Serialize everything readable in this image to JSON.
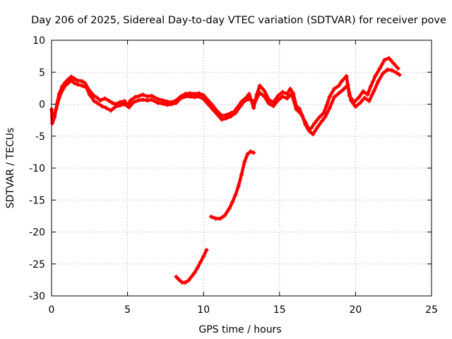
{
  "chart_data": {
    "type": "scatter",
    "title": "Day 206 of 2025, Sidereal Day-to-day VTEC variation (SDTVAR) for receiver pove",
    "xlabel": "GPS time / hours",
    "ylabel": "SDTVAR / TECUs",
    "xlim": [
      0,
      25
    ],
    "ylim": [
      -30,
      10
    ],
    "xticks": [
      0,
      5,
      10,
      15,
      20,
      25
    ],
    "yticks": [
      10,
      5,
      0,
      -5,
      -10,
      -15,
      -20,
      -25,
      -30
    ],
    "xtick_labels": [
      "0",
      "5",
      "10",
      "15",
      "20",
      "25"
    ],
    "ytick_labels": [
      "10",
      "5",
      "0",
      "-5",
      "-10",
      "-15",
      "-20",
      "-25",
      "-30"
    ],
    "grid": true,
    "series_color": "#ff0000",
    "series": [
      {
        "name": "main-trace-a",
        "points": [
          [
            0.0,
            -0.8
          ],
          [
            0.05,
            -3.0
          ],
          [
            0.2,
            -2.0
          ],
          [
            0.35,
            0.0
          ],
          [
            0.5,
            1.6
          ],
          [
            0.7,
            2.8
          ],
          [
            0.9,
            3.4
          ],
          [
            1.1,
            3.9
          ],
          [
            1.3,
            4.3
          ],
          [
            1.5,
            4.0
          ],
          [
            1.7,
            3.7
          ],
          [
            2.0,
            3.6
          ],
          [
            2.2,
            3.3
          ],
          [
            2.5,
            2.1
          ],
          [
            2.8,
            1.3
          ],
          [
            3.0,
            1.0
          ],
          [
            3.2,
            0.6
          ],
          [
            3.5,
            0.9
          ],
          [
            3.8,
            0.5
          ],
          [
            4.0,
            0.2
          ],
          [
            4.2,
            0.0
          ],
          [
            4.5,
            0.3
          ],
          [
            4.8,
            0.5
          ],
          [
            5.0,
            -0.2
          ],
          [
            5.2,
            0.6
          ],
          [
            5.5,
            1.1
          ],
          [
            5.8,
            1.3
          ],
          [
            6.0,
            1.5
          ],
          [
            6.3,
            1.2
          ],
          [
            6.6,
            1.3
          ],
          [
            7.0,
            0.8
          ],
          [
            7.3,
            0.6
          ],
          [
            7.6,
            0.4
          ],
          [
            7.9,
            0.3
          ],
          [
            8.2,
            0.6
          ],
          [
            8.5,
            1.2
          ],
          [
            8.8,
            1.6
          ],
          [
            9.1,
            1.7
          ],
          [
            9.4,
            1.6
          ],
          [
            9.7,
            1.7
          ],
          [
            10.0,
            1.4
          ],
          [
            10.3,
            0.6
          ],
          [
            10.6,
            -0.2
          ],
          [
            10.9,
            -1.1
          ],
          [
            11.2,
            -1.8
          ],
          [
            11.5,
            -1.7
          ],
          [
            11.8,
            -1.4
          ],
          [
            12.0,
            -1.2
          ],
          [
            12.2,
            -0.6
          ],
          [
            12.5,
            0.4
          ],
          [
            12.8,
            1.0
          ],
          [
            13.0,
            1.6
          ],
          [
            13.3,
            -0.6
          ],
          [
            13.5,
            1.5
          ],
          [
            13.7,
            2.9
          ],
          [
            14.0,
            2.1
          ],
          [
            14.3,
            0.7
          ],
          [
            14.6,
            0.3
          ],
          [
            14.9,
            1.3
          ],
          [
            15.2,
            1.9
          ],
          [
            15.5,
            1.6
          ],
          [
            15.7,
            2.4
          ],
          [
            15.9,
            1.7
          ],
          [
            16.1,
            -0.3
          ],
          [
            16.3,
            -0.7
          ],
          [
            16.5,
            -1.8
          ],
          [
            16.7,
            -3.2
          ],
          [
            16.9,
            -4.0
          ],
          [
            17.1,
            -3.7
          ],
          [
            17.3,
            -3.0
          ],
          [
            17.6,
            -2.1
          ],
          [
            17.9,
            -1.4
          ],
          [
            18.1,
            -0.2
          ],
          [
            18.3,
            1.2
          ],
          [
            18.6,
            2.4
          ],
          [
            18.9,
            2.9
          ],
          [
            19.1,
            3.6
          ],
          [
            19.4,
            4.4
          ],
          [
            19.6,
            1.3
          ],
          [
            19.9,
            0.3
          ],
          [
            20.2,
            1.0
          ],
          [
            20.5,
            2.0
          ],
          [
            20.8,
            1.5
          ],
          [
            21.0,
            2.8
          ],
          [
            21.3,
            4.4
          ],
          [
            21.6,
            5.6
          ],
          [
            21.9,
            6.9
          ],
          [
            22.2,
            7.2
          ],
          [
            22.5,
            6.4
          ],
          [
            22.8,
            5.6
          ]
        ]
      },
      {
        "name": "main-trace-b",
        "points": [
          [
            0.1,
            -2.2
          ],
          [
            0.3,
            -0.8
          ],
          [
            0.5,
            1.0
          ],
          [
            0.7,
            2.1
          ],
          [
            0.9,
            2.9
          ],
          [
            1.1,
            3.3
          ],
          [
            1.3,
            3.7
          ],
          [
            1.5,
            3.3
          ],
          [
            1.7,
            3.1
          ],
          [
            2.0,
            2.9
          ],
          [
            2.3,
            2.6
          ],
          [
            2.5,
            1.5
          ],
          [
            2.8,
            0.5
          ],
          [
            3.0,
            0.2
          ],
          [
            3.3,
            -0.3
          ],
          [
            3.6,
            -0.6
          ],
          [
            3.9,
            -1.0
          ],
          [
            4.2,
            -0.4
          ],
          [
            4.5,
            -0.2
          ],
          [
            4.8,
            0.0
          ],
          [
            5.1,
            -0.5
          ],
          [
            5.4,
            0.3
          ],
          [
            5.7,
            0.6
          ],
          [
            6.0,
            0.7
          ],
          [
            6.3,
            0.6
          ],
          [
            6.6,
            0.7
          ],
          [
            7.0,
            0.2
          ],
          [
            7.3,
            0.1
          ],
          [
            7.6,
            -0.1
          ],
          [
            7.9,
            0.0
          ],
          [
            8.2,
            0.2
          ],
          [
            8.5,
            0.9
          ],
          [
            8.8,
            1.2
          ],
          [
            9.1,
            1.2
          ],
          [
            9.4,
            1.1
          ],
          [
            9.7,
            1.2
          ],
          [
            10.0,
            0.8
          ],
          [
            10.3,
            0.0
          ],
          [
            10.6,
            -0.8
          ],
          [
            10.9,
            -1.6
          ],
          [
            11.2,
            -2.4
          ],
          [
            11.5,
            -2.2
          ],
          [
            11.8,
            -1.9
          ],
          [
            12.1,
            -1.4
          ],
          [
            12.4,
            -0.4
          ],
          [
            12.7,
            0.5
          ],
          [
            13.0,
            0.8
          ],
          [
            13.4,
            0.4
          ],
          [
            13.7,
            1.8
          ],
          [
            14.0,
            1.2
          ],
          [
            14.3,
            0.1
          ],
          [
            14.6,
            -0.3
          ],
          [
            14.9,
            0.6
          ],
          [
            15.2,
            1.2
          ],
          [
            15.5,
            0.9
          ],
          [
            15.8,
            1.6
          ],
          [
            16.1,
            -0.8
          ],
          [
            16.4,
            -1.5
          ],
          [
            16.7,
            -2.8
          ],
          [
            17.0,
            -4.3
          ],
          [
            17.2,
            -4.7
          ],
          [
            17.5,
            -3.6
          ],
          [
            17.8,
            -2.6
          ],
          [
            18.0,
            -2.0
          ],
          [
            18.3,
            -0.6
          ],
          [
            18.6,
            1.1
          ],
          [
            18.9,
            1.7
          ],
          [
            19.2,
            2.3
          ],
          [
            19.5,
            3.0
          ],
          [
            19.7,
            0.6
          ],
          [
            20.0,
            -0.4
          ],
          [
            20.3,
            0.2
          ],
          [
            20.6,
            1.0
          ],
          [
            20.9,
            0.5
          ],
          [
            21.2,
            2.0
          ],
          [
            21.5,
            3.6
          ],
          [
            21.8,
            4.8
          ],
          [
            22.1,
            5.4
          ],
          [
            22.4,
            5.3
          ],
          [
            22.7,
            4.9
          ],
          [
            22.9,
            4.6
          ]
        ]
      },
      {
        "name": "segment-upper",
        "points": [
          [
            10.5,
            -17.6
          ],
          [
            10.8,
            -17.9
          ],
          [
            11.1,
            -17.9
          ],
          [
            11.4,
            -17.4
          ],
          [
            11.7,
            -16.3
          ],
          [
            11.9,
            -15.3
          ],
          [
            12.1,
            -14.2
          ],
          [
            12.3,
            -12.8
          ],
          [
            12.5,
            -11.0
          ],
          [
            12.7,
            -9.0
          ],
          [
            12.9,
            -7.8
          ],
          [
            13.1,
            -7.4
          ],
          [
            13.3,
            -7.6
          ]
        ]
      },
      {
        "name": "segment-lower",
        "points": [
          [
            8.2,
            -27.0
          ],
          [
            8.4,
            -27.5
          ],
          [
            8.6,
            -27.9
          ],
          [
            8.8,
            -27.9
          ],
          [
            9.0,
            -27.6
          ],
          [
            9.2,
            -27.0
          ],
          [
            9.4,
            -26.4
          ],
          [
            9.6,
            -25.6
          ],
          [
            9.8,
            -24.7
          ],
          [
            10.0,
            -23.8
          ],
          [
            10.2,
            -22.8
          ]
        ]
      }
    ]
  }
}
